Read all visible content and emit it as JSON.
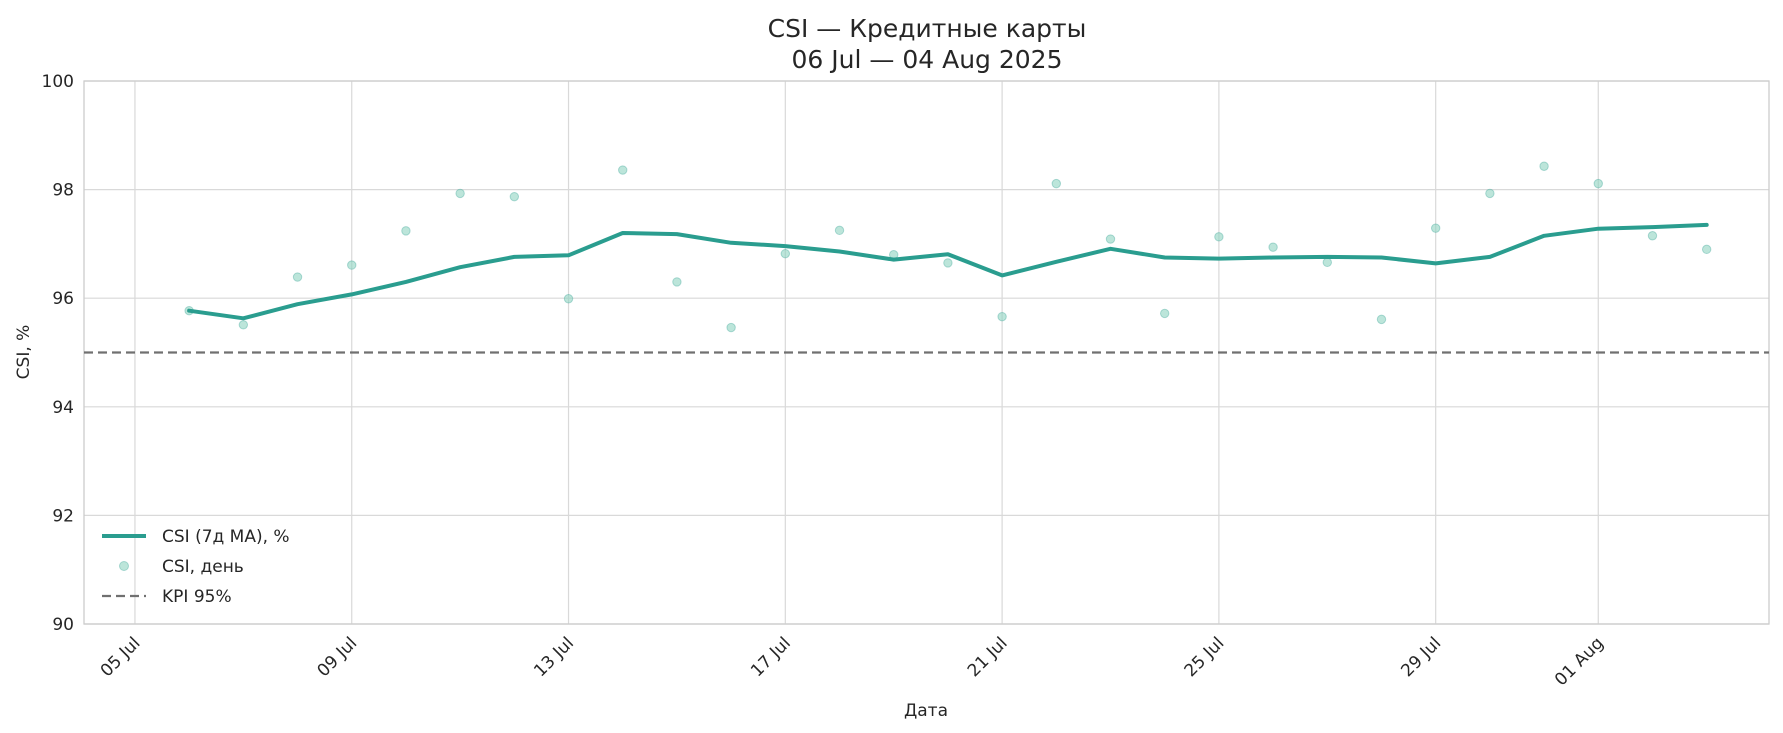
{
  "chart_data": {
    "type": "line",
    "title": "CSI — Кредитные карты",
    "subtitle": "06 Jul — 04 Aug 2025",
    "xlabel": "Дата",
    "ylabel": "CSI, %",
    "ylim": [
      90,
      100
    ],
    "xlim": [
      "2025-07-05",
      "2025-08-04"
    ],
    "grid": true,
    "legend_position": "lower-left",
    "x_ticks": [
      {
        "date": "2025-07-05",
        "label": "05 Jul"
      },
      {
        "date": "2025-07-09",
        "label": "09 Jul"
      },
      {
        "date": "2025-07-13",
        "label": "13 Jul"
      },
      {
        "date": "2025-07-17",
        "label": "17 Jul"
      },
      {
        "date": "2025-07-21",
        "label": "21 Jul"
      },
      {
        "date": "2025-07-25",
        "label": "25 Jul"
      },
      {
        "date": "2025-07-29",
        "label": "29 Jul"
      },
      {
        "date": "2025-08-01",
        "label": "01 Aug"
      }
    ],
    "y_ticks": [
      90,
      92,
      94,
      96,
      98,
      100
    ],
    "x": [
      "2025-07-06",
      "2025-07-07",
      "2025-07-08",
      "2025-07-09",
      "2025-07-10",
      "2025-07-11",
      "2025-07-12",
      "2025-07-13",
      "2025-07-14",
      "2025-07-15",
      "2025-07-16",
      "2025-07-17",
      "2025-07-18",
      "2025-07-19",
      "2025-07-20",
      "2025-07-21",
      "2025-07-22",
      "2025-07-23",
      "2025-07-24",
      "2025-07-25",
      "2025-07-26",
      "2025-07-27",
      "2025-07-28",
      "2025-07-29",
      "2025-07-30",
      "2025-07-31",
      "2025-08-01",
      "2025-08-02",
      "2025-08-03"
    ],
    "series": [
      {
        "name": "CSI (7д MA), %",
        "style": "line",
        "color": "#2a9d8f",
        "values": [
          95.77,
          95.63,
          95.89,
          96.07,
          96.3,
          96.57,
          96.76,
          96.79,
          97.2,
          97.18,
          97.02,
          96.96,
          96.86,
          96.71,
          96.81,
          96.42,
          96.67,
          96.91,
          96.75,
          96.73,
          96.75,
          96.76,
          96.75,
          96.64,
          96.76,
          97.15,
          97.28,
          97.31,
          97.35
        ]
      },
      {
        "name": "CSI, день",
        "style": "scatter",
        "color": "#8fd3c1",
        "values": [
          95.77,
          95.51,
          96.39,
          96.61,
          97.24,
          97.93,
          97.87,
          95.99,
          98.36,
          96.3,
          95.46,
          96.82,
          97.25,
          96.8,
          96.65,
          95.66,
          98.11,
          97.09,
          95.72,
          97.13,
          96.94,
          96.66,
          95.61,
          97.29,
          97.93,
          98.43,
          98.11,
          97.15,
          96.9
        ]
      }
    ],
    "reference_line": {
      "name": "KPI 95%",
      "value": 95,
      "color": "#707070",
      "style": "dashed"
    }
  }
}
